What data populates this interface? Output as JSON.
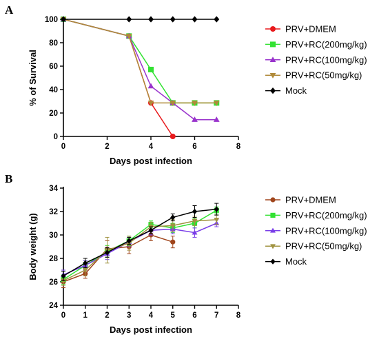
{
  "chart_data": [
    {
      "panel_label": "A",
      "type": "line",
      "xlabel": "Days post infection",
      "ylabel": "% of Survival",
      "xlim": [
        0,
        8
      ],
      "ylim": [
        0,
        100
      ],
      "xticks": [
        0,
        2,
        4,
        6,
        8
      ],
      "yticks": [
        0,
        20,
        40,
        60,
        80,
        100
      ],
      "grid": false,
      "legend_position": "right",
      "series": [
        {
          "name": "PRV+DMEM",
          "color": "#e8191c",
          "marker": "circle",
          "points": [
            [
              0,
              100
            ],
            [
              3,
              85.7
            ],
            [
              4,
              28.6
            ],
            [
              5,
              0
            ]
          ]
        },
        {
          "name": "PRV+RC(200mg/kg)",
          "color": "#33e233",
          "marker": "square",
          "points": [
            [
              0,
              100
            ],
            [
              3,
              85.7
            ],
            [
              4,
              57.1
            ],
            [
              5,
              28.6
            ],
            [
              6,
              28.6
            ],
            [
              7,
              28.6
            ]
          ]
        },
        {
          "name": "PRV+RC(100mg/kg)",
          "color": "#9933cc",
          "marker": "triangle-up",
          "points": [
            [
              0,
              100
            ],
            [
              3,
              85.7
            ],
            [
              4,
              42.9
            ],
            [
              5,
              28.6
            ],
            [
              6,
              14.3
            ],
            [
              7,
              14.3
            ]
          ]
        },
        {
          "name": "PRV+RC(50mg/kg)",
          "color": "#b08a3a",
          "marker": "triangle-down",
          "points": [
            [
              0,
              100
            ],
            [
              3,
              85.7
            ],
            [
              4,
              28.6
            ],
            [
              5,
              28.6
            ],
            [
              6,
              28.6
            ],
            [
              7,
              28.6
            ]
          ]
        },
        {
          "name": "Mock",
          "color": "#000000",
          "marker": "diamond",
          "points": [
            [
              0,
              100
            ],
            [
              3,
              100
            ],
            [
              4,
              100
            ],
            [
              5,
              100
            ],
            [
              6,
              100
            ],
            [
              7,
              100
            ]
          ]
        }
      ]
    },
    {
      "panel_label": "B",
      "type": "line",
      "xlabel": "Days post infection",
      "ylabel": "Body weight (g)",
      "xlim": [
        0,
        8
      ],
      "ylim": [
        24,
        34
      ],
      "xticks": [
        0,
        1,
        2,
        3,
        4,
        5,
        6,
        7,
        8
      ],
      "yticks": [
        24,
        26,
        28,
        30,
        32,
        34
      ],
      "grid": false,
      "legend_position": "right",
      "error_bars": true,
      "series": [
        {
          "name": "PRV+DMEM",
          "color": "#a0451c",
          "marker": "circle",
          "points": [
            [
              0,
              26.0,
              0.5
            ],
            [
              1,
              26.7,
              0.4
            ],
            [
              2,
              28.8,
              0.7
            ],
            [
              3,
              29.0,
              0.6
            ],
            [
              4,
              30.0,
              0.5
            ],
            [
              5,
              29.4,
              0.5
            ]
          ]
        },
        {
          "name": "PRV+RC(200mg/kg)",
          "color": "#33e233",
          "marker": "square",
          "points": [
            [
              0,
              26.2,
              0.4
            ],
            [
              1,
              27.4,
              0.4
            ],
            [
              2,
              28.6,
              0.5
            ],
            [
              3,
              29.5,
              0.4
            ],
            [
              4,
              30.9,
              0.3
            ],
            [
              5,
              30.6,
              0.4
            ],
            [
              6,
              31.0,
              0.4
            ],
            [
              7,
              32.1,
              0.3
            ]
          ]
        },
        {
          "name": "PRV+RC(100mg/kg)",
          "color": "#7a3ee8",
          "marker": "triangle-up",
          "points": [
            [
              0,
              26.6,
              0.4
            ],
            [
              1,
              27.4,
              0.4
            ],
            [
              2,
              28.4,
              0.5
            ],
            [
              3,
              29.4,
              0.4
            ],
            [
              4,
              30.4,
              0.4
            ],
            [
              5,
              30.5,
              0.4
            ],
            [
              6,
              30.2,
              0.4
            ],
            [
              7,
              31.0,
              0.3
            ]
          ]
        },
        {
          "name": "PRV+RC(50mg/kg)",
          "color": "#a09340",
          "marker": "triangle-down",
          "points": [
            [
              0,
              26.1,
              0.4
            ],
            [
              1,
              27.0,
              0.5
            ],
            [
              2,
              28.7,
              1.1
            ],
            [
              3,
              29.3,
              0.6
            ],
            [
              4,
              30.7,
              0.4
            ],
            [
              5,
              30.8,
              0.5
            ],
            [
              6,
              31.2,
              0.4
            ],
            [
              7,
              31.3,
              0.4
            ]
          ]
        },
        {
          "name": "Mock",
          "color": "#000000",
          "marker": "diamond",
          "points": [
            [
              0,
              26.5,
              0.4
            ],
            [
              1,
              27.6,
              0.4
            ],
            [
              2,
              28.5,
              0.4
            ],
            [
              3,
              29.5,
              0.3
            ],
            [
              4,
              30.4,
              0.3
            ],
            [
              5,
              31.5,
              0.3
            ],
            [
              6,
              32.0,
              0.5
            ],
            [
              7,
              32.2,
              0.5
            ]
          ]
        }
      ]
    }
  ]
}
